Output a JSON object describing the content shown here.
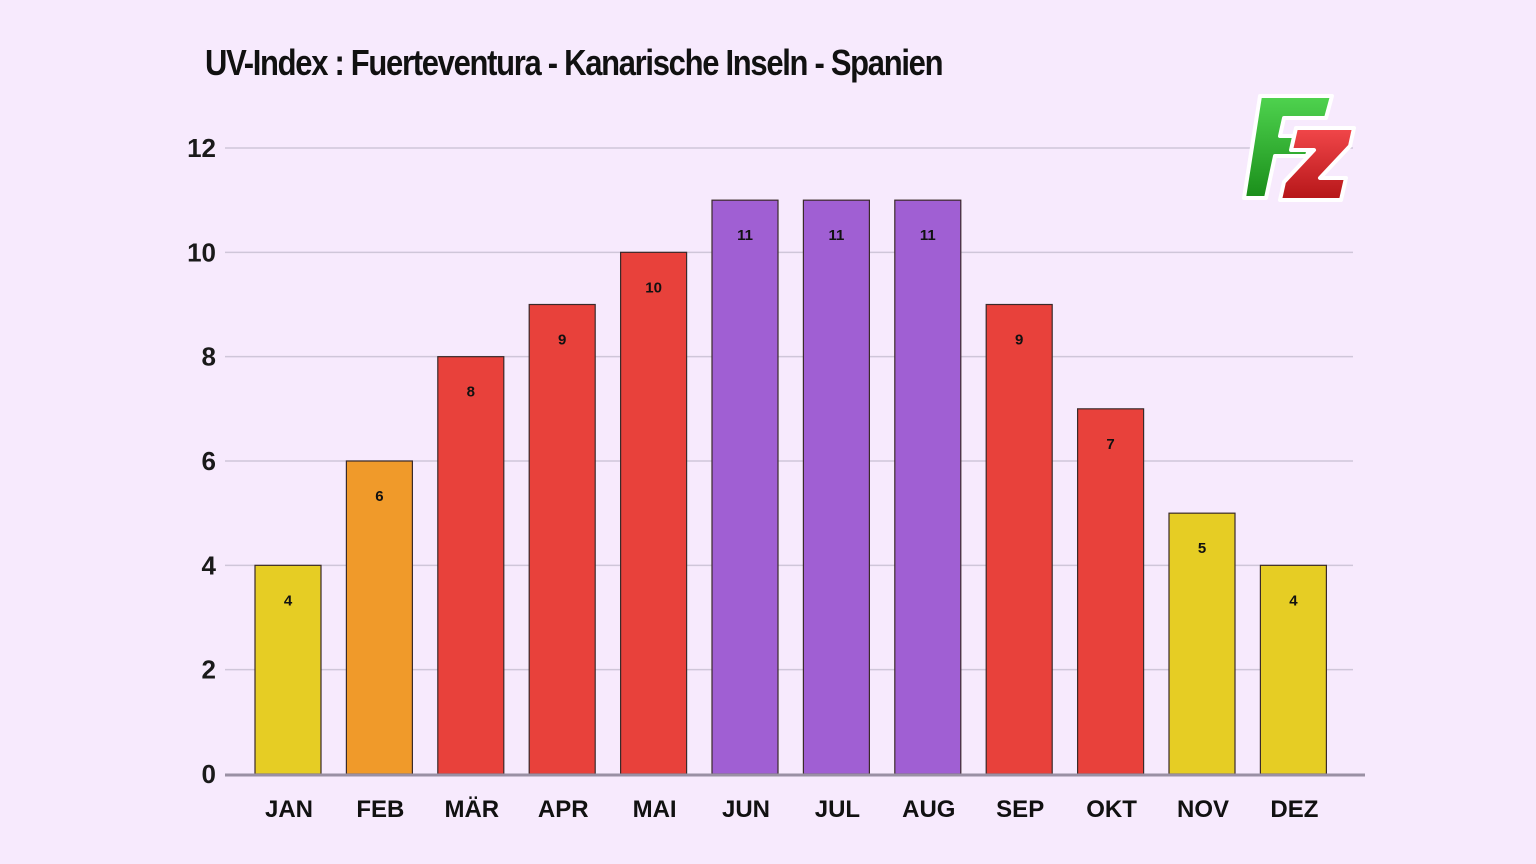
{
  "chart_data": {
    "type": "bar",
    "title": "UV-Index : Fuerteventura - Kanarische Inseln - Spanien",
    "categories": [
      "JAN",
      "FEB",
      "MÄR",
      "APR",
      "MAI",
      "JUN",
      "JUL",
      "AUG",
      "SEP",
      "OKT",
      "NOV",
      "DEZ"
    ],
    "values": [
      4,
      6,
      8,
      9,
      10,
      11,
      11,
      11,
      9,
      7,
      5,
      4
    ],
    "bar_colors": [
      "#e6cd24",
      "#f09a2a",
      "#e8413b",
      "#e8413b",
      "#e8413b",
      "#a05fd3",
      "#a05fd3",
      "#a05fd3",
      "#e8413b",
      "#e8413b",
      "#e6cd24",
      "#e6cd24"
    ],
    "ylim": [
      0,
      12
    ],
    "yticks": [
      0,
      2,
      4,
      6,
      8,
      10,
      12
    ],
    "xlabel": "",
    "ylabel": "",
    "grid": true,
    "data_labels": true
  },
  "logo": {
    "text": "FZ",
    "letter_f_color": "#2fb52f",
    "letter_z_color": "#e0282b"
  }
}
